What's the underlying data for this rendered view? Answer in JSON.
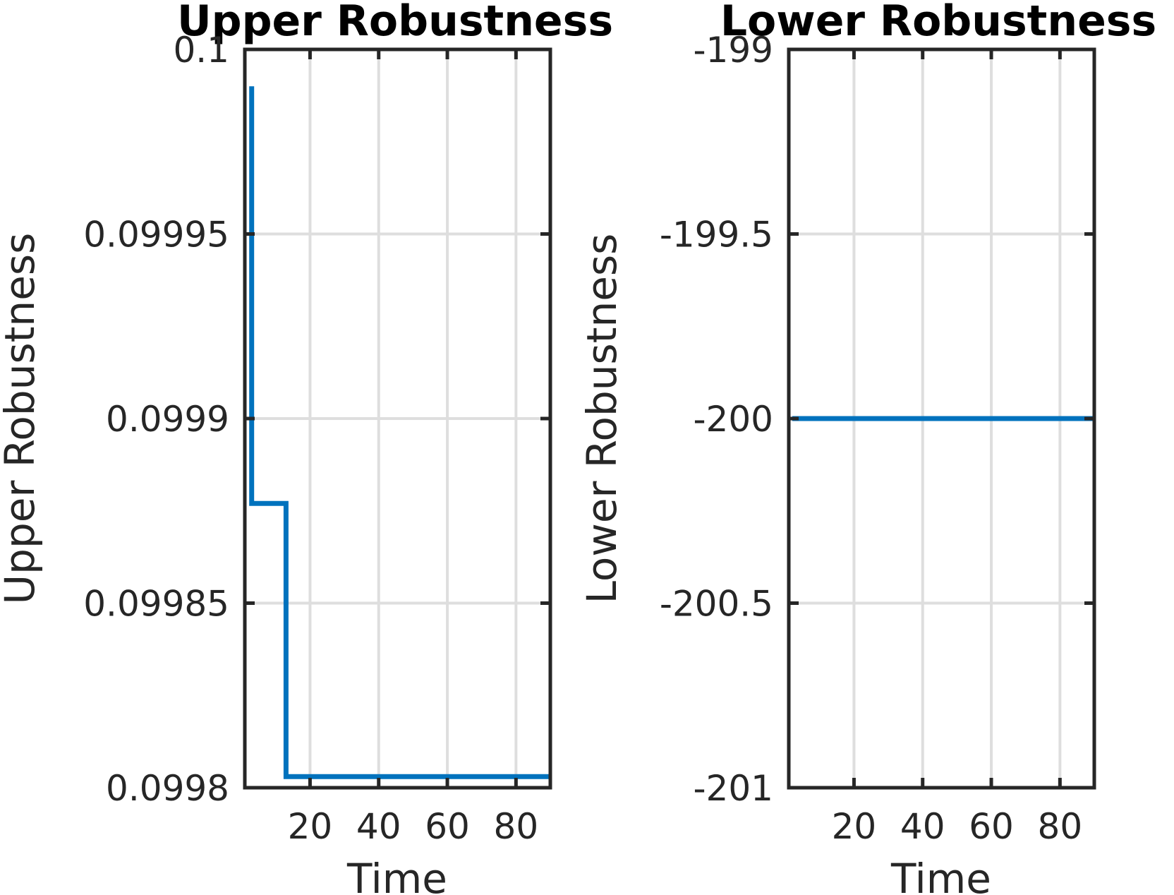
{
  "chart_data": [
    {
      "type": "line",
      "title": "Upper Robustness",
      "xlabel": "Time",
      "ylabel": "Upper Robustness",
      "xlim": [
        1,
        90
      ],
      "ylim": [
        0.0998,
        0.1
      ],
      "xticks": [
        20,
        40,
        60,
        80
      ],
      "xtick_labels": [
        "20",
        "40",
        "60",
        "80"
      ],
      "yticks": [
        0.0998,
        0.09985,
        0.0999,
        0.09995,
        0.1
      ],
      "ytick_labels": [
        "0.0998",
        "0.09985",
        "0.0999",
        "0.09995",
        "0.1"
      ],
      "grid": true,
      "step": true,
      "series": [
        {
          "color": "#0072bd",
          "x": [
            3,
            3,
            13,
            13,
            90
          ],
          "y": [
            0.09999,
            0.099877,
            0.099877,
            0.099803,
            0.099803
          ]
        }
      ]
    },
    {
      "type": "line",
      "title": "Lower Robustness",
      "xlabel": "Time",
      "ylabel": "Lower Robustness",
      "xlim": [
        1,
        90
      ],
      "ylim": [
        -201,
        -199
      ],
      "xticks": [
        20,
        40,
        60,
        80
      ],
      "xtick_labels": [
        "20",
        "40",
        "60",
        "80"
      ],
      "yticks": [
        -201,
        -200.5,
        -200,
        -199.5,
        -199
      ],
      "ytick_labels": [
        "-201",
        "-200.5",
        "-200",
        "-199.5",
        "-199"
      ],
      "grid": true,
      "step": false,
      "series": [
        {
          "color": "#0072bd",
          "x": [
            2,
            90
          ],
          "y": [
            -200,
            -200
          ]
        }
      ]
    }
  ]
}
